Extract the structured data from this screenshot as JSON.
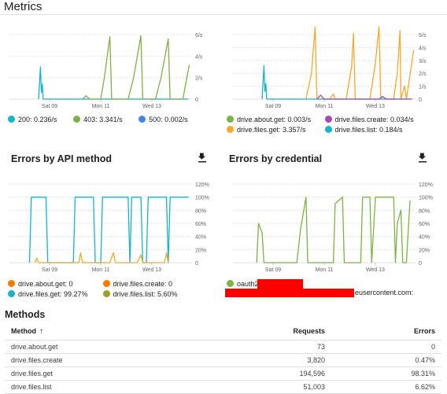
{
  "page_title": "Metrics",
  "errors_api_title": "Errors by API method",
  "errors_cred_title": "Errors by credential",
  "methods_title": "Methods",
  "x_ticks": [
    "Sat 09",
    "Mon 11",
    "Wed 13"
  ],
  "colors": {
    "teal": "#12b5cb",
    "green": "#7cb342",
    "blue": "#4285f4",
    "orange": "#f9a825",
    "purple": "#ab47bc",
    "olive": "#9e9d24",
    "red": "#ff0000"
  },
  "chart_data": [
    {
      "type": "line",
      "name": "traffic-by-response-code",
      "y_ticks": [
        "0",
        "2/s",
        "4/s",
        "6/s"
      ],
      "ylim": [
        0,
        6
      ],
      "legend": [
        {
          "label": "200: 0.236/s",
          "color": "#12b5cb"
        },
        {
          "label": "403: 3.341/s",
          "color": "#7cb342"
        },
        {
          "label": "500: 0.002/s",
          "color": "#4285f4"
        }
      ],
      "series": [
        {
          "color": "#12b5cb",
          "points": [
            [
              0.16,
              0
            ],
            [
              0.17,
              3
            ],
            [
              0.175,
              0.6
            ],
            [
              0.18,
              1.4
            ],
            [
              0.185,
              0
            ],
            [
              0.52,
              0
            ],
            [
              0.7,
              0
            ],
            [
              0.86,
              0
            ],
            [
              0.98,
              0
            ]
          ]
        },
        {
          "color": "#7cb342",
          "points": [
            [
              0.4,
              0
            ],
            [
              0.42,
              0.3
            ],
            [
              0.44,
              0
            ],
            [
              0.5,
              0
            ],
            [
              0.52,
              2
            ],
            [
              0.55,
              5.8
            ],
            [
              0.56,
              0
            ],
            [
              0.65,
              0
            ],
            [
              0.68,
              2
            ],
            [
              0.72,
              5.9
            ],
            [
              0.73,
              0
            ],
            [
              0.8,
              0
            ],
            [
              0.83,
              2
            ],
            [
              0.87,
              5.6
            ],
            [
              0.88,
              0
            ],
            [
              0.95,
              0
            ],
            [
              0.985,
              3.2
            ]
          ]
        }
      ]
    },
    {
      "type": "line",
      "name": "traffic-by-api-method",
      "y_ticks": [
        "0",
        "1/s",
        "2/s",
        "3/s",
        "4/s",
        "5/s"
      ],
      "ylim": [
        0,
        5
      ],
      "legend": [
        {
          "label": "drive.about.get: 0.003/s",
          "color": "#7cb342"
        },
        {
          "label": "drive.files.create: 0.034/s",
          "color": "#ab47bc"
        },
        {
          "label": "drive.files.get: 3.357/s",
          "color": "#f9a825"
        },
        {
          "label": "drive.files.list: 0.184/s",
          "color": "#12b5cb"
        }
      ],
      "series": [
        {
          "color": "#f9a825",
          "points": [
            [
              0.4,
              0
            ],
            [
              0.43,
              2
            ],
            [
              0.45,
              5.6
            ],
            [
              0.46,
              0
            ],
            [
              0.53,
              0
            ],
            [
              0.55,
              0.4
            ],
            [
              0.56,
              0
            ],
            [
              0.62,
              0
            ],
            [
              0.65,
              2.5
            ],
            [
              0.66,
              5.1
            ],
            [
              0.67,
              0
            ],
            [
              0.75,
              0
            ],
            [
              0.78,
              2.8
            ],
            [
              0.8,
              5.6
            ],
            [
              0.81,
              0
            ],
            [
              0.88,
              0
            ],
            [
              0.9,
              2
            ],
            [
              0.915,
              5.3
            ],
            [
              0.92,
              0
            ],
            [
              0.94,
              1
            ],
            [
              0.95,
              0
            ],
            [
              0.99,
              3.8
            ]
          ]
        },
        {
          "color": "#12b5cb",
          "points": [
            [
              0.16,
              0
            ],
            [
              0.17,
              2.6
            ],
            [
              0.175,
              0.6
            ],
            [
              0.18,
              1.2
            ],
            [
              0.185,
              0
            ],
            [
              0.6,
              0
            ],
            [
              0.98,
              0
            ]
          ]
        },
        {
          "color": "#ab47bc",
          "points": [
            [
              0.46,
              0
            ],
            [
              0.48,
              0.3
            ],
            [
              0.5,
              0
            ],
            [
              0.8,
              0
            ],
            [
              0.82,
              0.2
            ],
            [
              0.84,
              0
            ],
            [
              0.98,
              0
            ]
          ]
        }
      ]
    },
    {
      "type": "line",
      "name": "errors-by-api-method",
      "y_ticks": [
        "0",
        "20%",
        "40%",
        "60%",
        "80%",
        "100%",
        "120%"
      ],
      "ylim": [
        0,
        120
      ],
      "legend": [
        {
          "label": "drive.about.get: 0",
          "color": "#f57c00"
        },
        {
          "label": "drive.files.create: 0",
          "color": "#f57c00"
        },
        {
          "label": "drive.files.get: 99.27%",
          "color": "#12b5cb"
        },
        {
          "label": "drive.files.list: 5.60%",
          "color": "#9e9d24"
        }
      ],
      "series": [
        {
          "color": "#12b5cb",
          "points": [
            [
              0.11,
              0
            ],
            [
              0.12,
              100
            ],
            [
              0.2,
              100
            ],
            [
              0.21,
              0
            ],
            [
              0.35,
              0
            ],
            [
              0.36,
              100
            ],
            [
              0.46,
              100
            ],
            [
              0.47,
              0
            ],
            [
              0.5,
              0
            ],
            [
              0.51,
              100
            ],
            [
              0.65,
              100
            ],
            [
              0.66,
              0
            ],
            [
              0.67,
              100
            ],
            [
              0.72,
              100
            ],
            [
              0.73,
              0
            ],
            [
              0.75,
              0
            ],
            [
              0.76,
              100
            ],
            [
              0.86,
              100
            ],
            [
              0.87,
              0
            ],
            [
              0.88,
              100
            ],
            [
              0.98,
              100
            ]
          ]
        },
        {
          "color": "#f9a825",
          "points": [
            [
              0.14,
              0
            ],
            [
              0.15,
              7
            ],
            [
              0.16,
              0
            ],
            [
              0.38,
              0
            ],
            [
              0.39,
              15
            ],
            [
              0.4,
              0
            ],
            [
              0.55,
              0
            ],
            [
              0.57,
              15
            ],
            [
              0.58,
              0
            ],
            [
              0.7,
              0
            ],
            [
              0.72,
              12
            ],
            [
              0.73,
              0
            ],
            [
              0.85,
              0
            ],
            [
              0.86,
              15
            ],
            [
              0.87,
              0
            ]
          ]
        }
      ]
    },
    {
      "type": "line",
      "name": "errors-by-credential",
      "y_ticks": [
        "0",
        "20%",
        "40%",
        "60%",
        "80%",
        "100%",
        "120%"
      ],
      "ylim": [
        0,
        120
      ],
      "legend": [
        {
          "label": "oauth2:",
          "color": "#7cb342"
        },
        {
          "label": "eusercontent.com:",
          "color": ""
        }
      ],
      "series": [
        {
          "color": "#7cb342",
          "points": [
            [
              0.13,
              0
            ],
            [
              0.14,
              60
            ],
            [
              0.16,
              45
            ],
            [
              0.17,
              0
            ],
            [
              0.35,
              0
            ],
            [
              0.37,
              50
            ],
            [
              0.4,
              100
            ],
            [
              0.41,
              0
            ],
            [
              0.55,
              0
            ],
            [
              0.56,
              90
            ],
            [
              0.6,
              100
            ],
            [
              0.61,
              0
            ],
            [
              0.7,
              0
            ],
            [
              0.71,
              100
            ],
            [
              0.75,
              100
            ],
            [
              0.76,
              0
            ],
            [
              0.78,
              100
            ],
            [
              0.88,
              100
            ],
            [
              0.89,
              0
            ],
            [
              0.9,
              60
            ],
            [
              0.92,
              80
            ],
            [
              0.93,
              0
            ],
            [
              0.95,
              0
            ],
            [
              0.97,
              95
            ]
          ]
        }
      ]
    }
  ],
  "table": {
    "headers": {
      "method": "Method",
      "requests": "Requests",
      "errors": "Errors"
    },
    "sort_arrow": "↑",
    "rows": [
      {
        "method": "drive.about.get",
        "requests": "73",
        "errors": "0"
      },
      {
        "method": "drive.files.create",
        "requests": "3,820",
        "errors": "0.47%"
      },
      {
        "method": "drive.files.get",
        "requests": "194,596",
        "errors": "98.31%"
      },
      {
        "method": "drive.files.list",
        "requests": "51,003",
        "errors": "6.62%"
      }
    ]
  }
}
